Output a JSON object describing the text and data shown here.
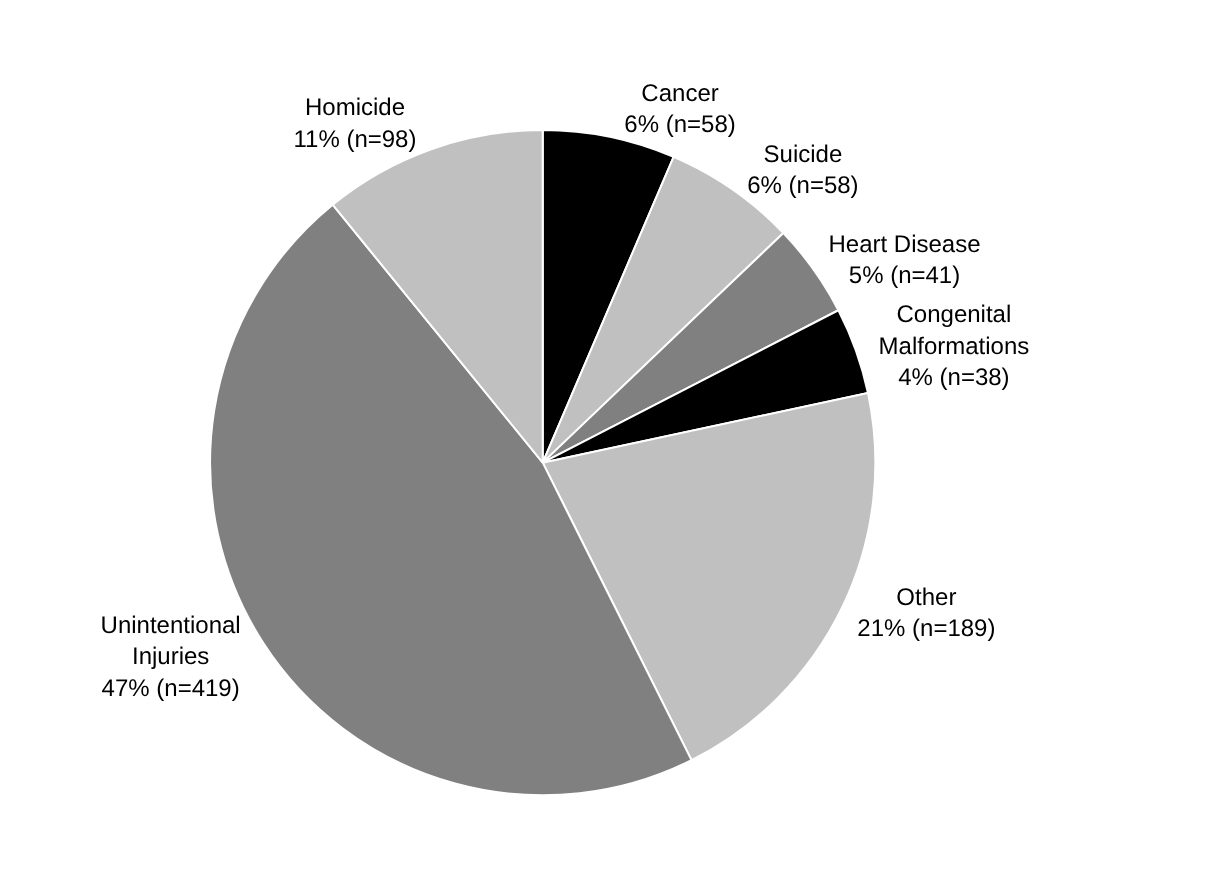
{
  "chart_data": {
    "type": "pie",
    "categories": [
      "Cancer",
      "Suicide",
      "Heart Disease",
      "Congenital Malformations",
      "Other",
      "Unintentional Injuries",
      "Homicide"
    ],
    "values": [
      58,
      58,
      41,
      38,
      189,
      419,
      98
    ],
    "value_labels": [
      "6% (n=58)",
      "6% (n=58)",
      "5% (n=41)",
      "4% (n=38)",
      "21% (n=189)",
      "47% (n=419)",
      "11% (n=98)"
    ],
    "colors": [
      "#000000",
      "#c0c0c0",
      "#808080",
      "#000000",
      "#c0c0c0",
      "#808080",
      "#c0c0c0"
    ],
    "legend": false
  }
}
